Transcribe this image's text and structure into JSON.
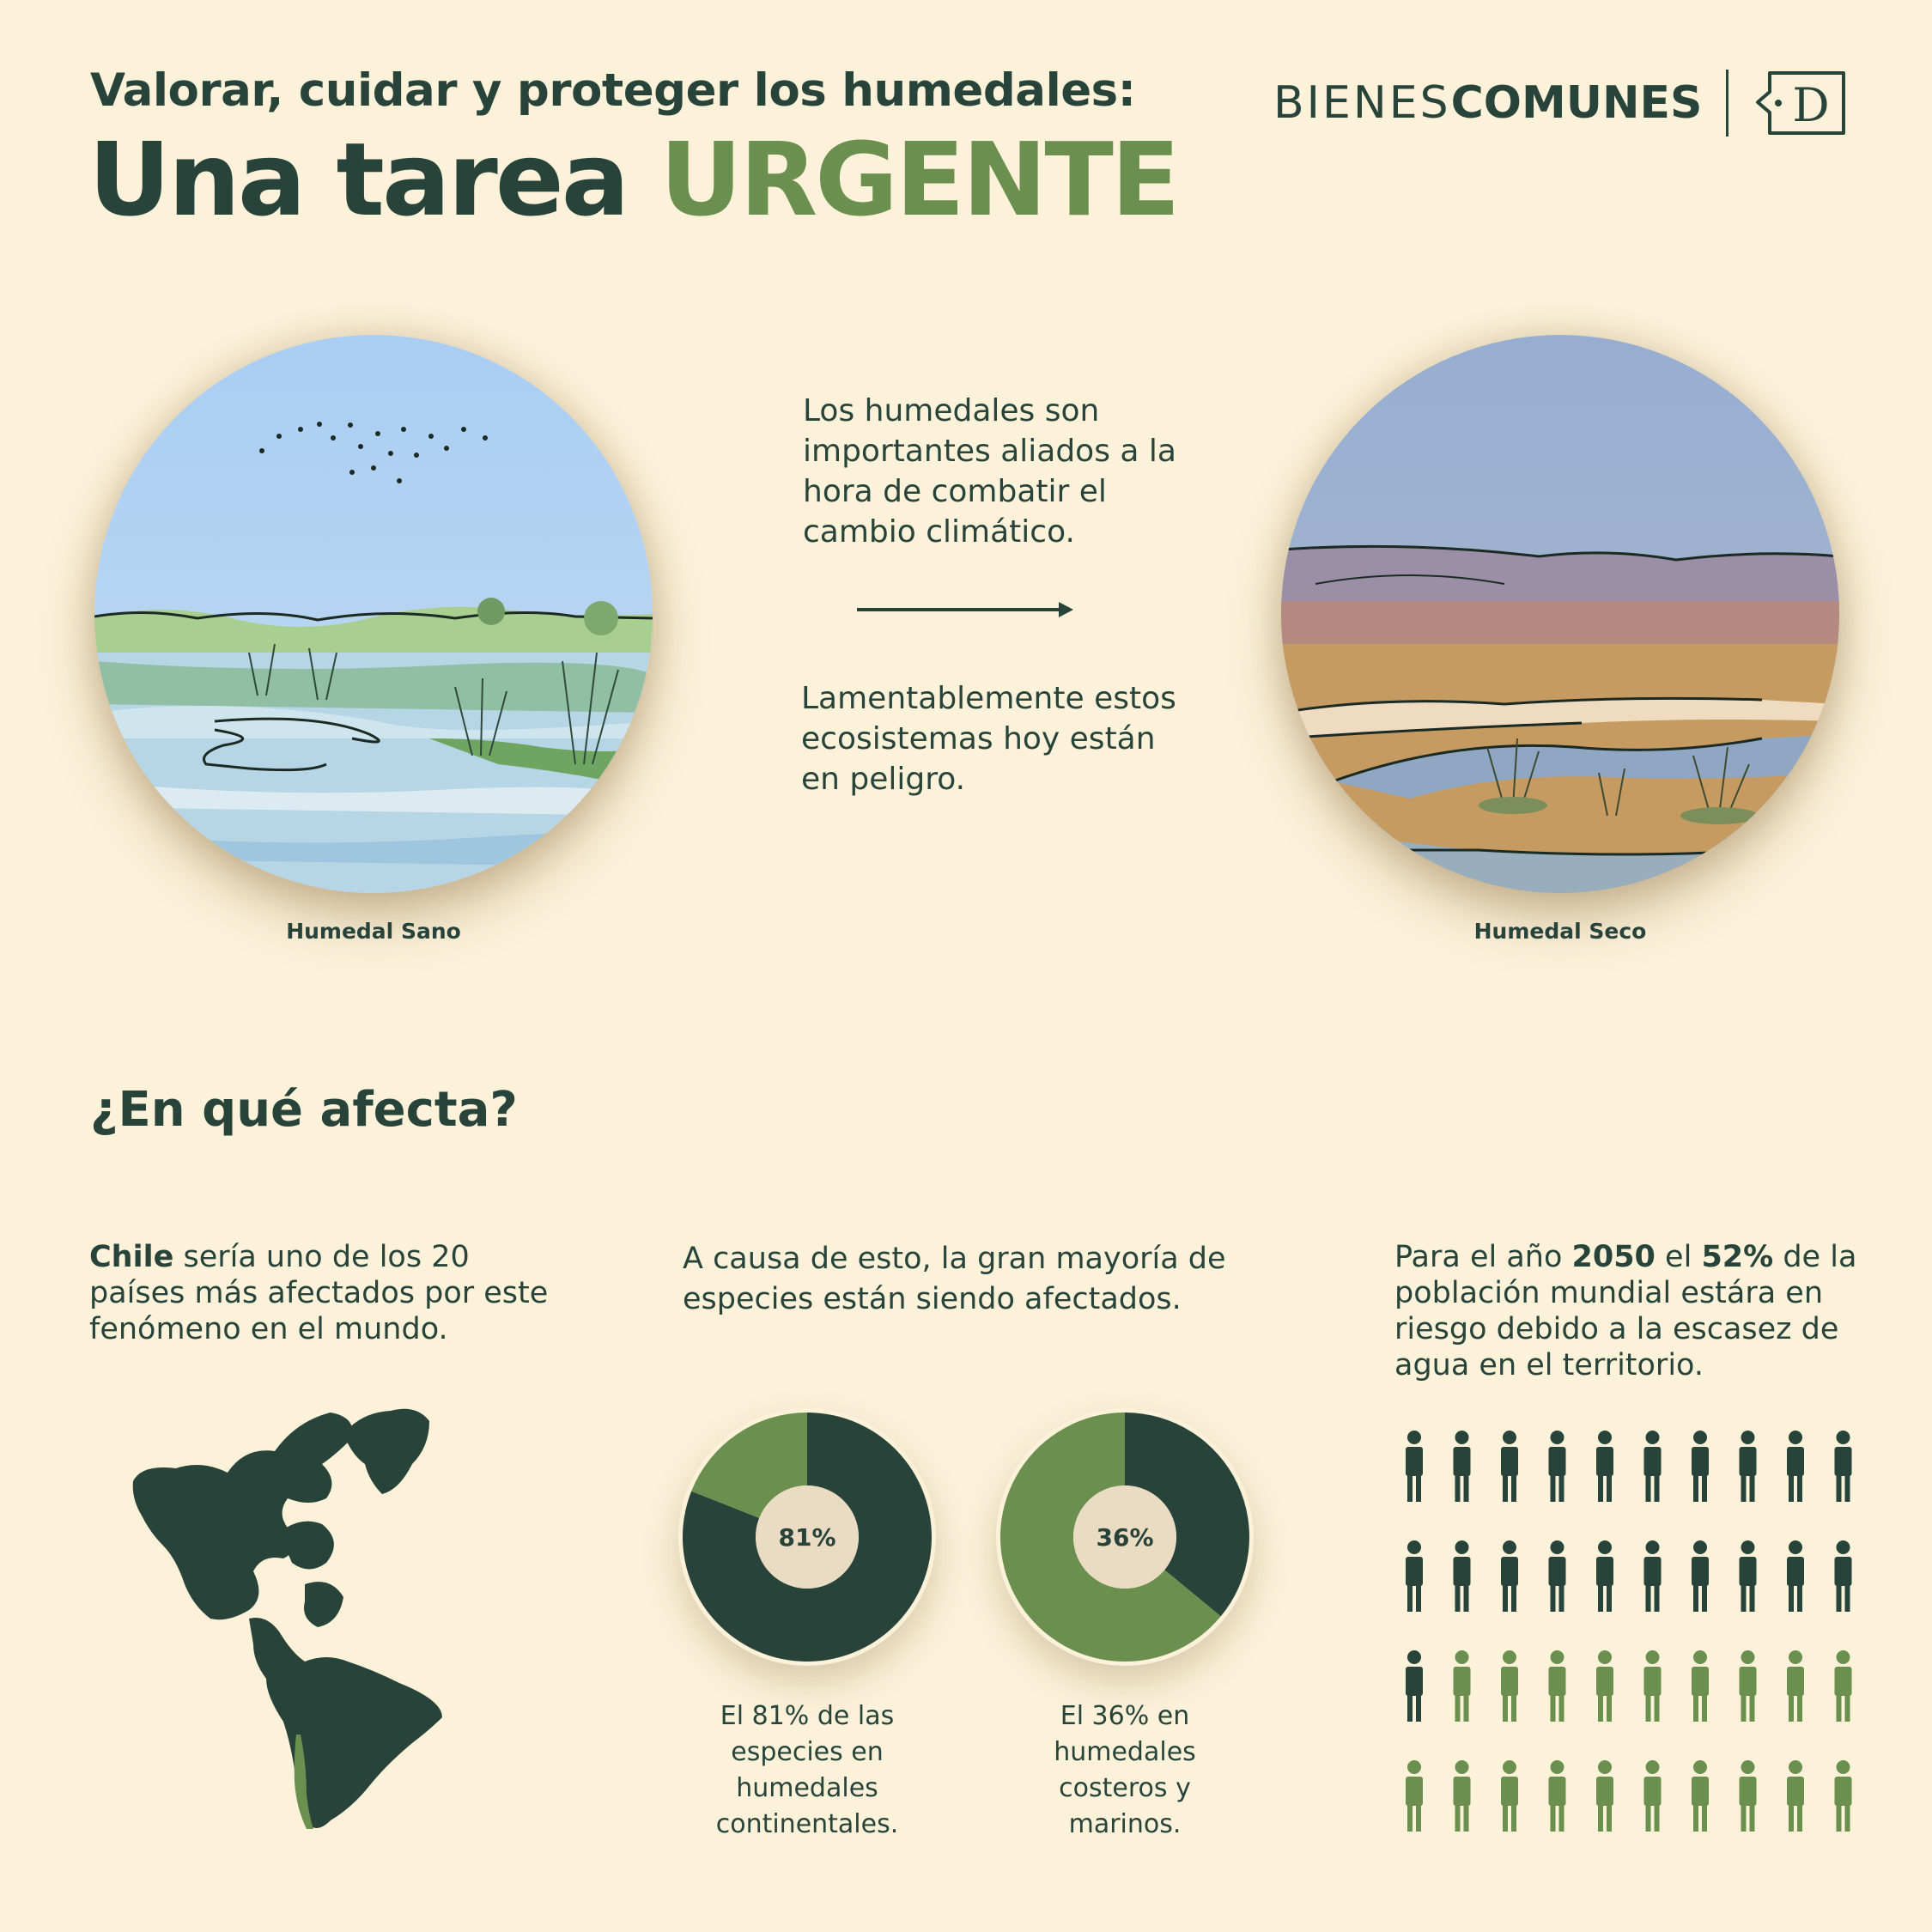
{
  "header": {
    "kicker": "Valorar, cuidar y proteger los humedales:",
    "headline_main": "Una tarea ",
    "headline_accent": "URGENTE",
    "brand_light": "BIENES",
    "brand_bold": "COMUNES",
    "brand_logo_letter": "D"
  },
  "images": {
    "left_caption": "Humedal Sano",
    "right_caption": "Humedal Seco"
  },
  "intro": {
    "line1": "Los humedales son importantes aliados a la hora de combatir el cambio climático.",
    "line2": "Lamentablemente estos ecosistemas hoy están en peligro."
  },
  "section": {
    "title": "¿En qué afecta?"
  },
  "col1": {
    "bold": "Chile",
    "text": " sería uno de los 20 países más afectados por este fenómeno en el mundo."
  },
  "col2": {
    "text": "A causa de esto, la gran mayoría de especies están siendo afectados."
  },
  "col3": {
    "t1": "Para el año ",
    "b1": "2050",
    "t2": " el ",
    "b2": "52%",
    "t3": " de la población mundial estára en riesgo debido a la escasez de agua en el territorio."
  },
  "donuts": [
    {
      "value": 81,
      "label": "81%",
      "caption": "El 81% de las especies en humedales continentales."
    },
    {
      "value": 36,
      "label": "36%",
      "caption": "El 36% en humedales costeros y marinos."
    }
  ],
  "people": {
    "total": 40,
    "dark_count": 21,
    "per_row": 10
  },
  "colors": {
    "background": "#fcf1d9",
    "dark_green": "#28443a",
    "light_green": "#6b8f4e"
  }
}
